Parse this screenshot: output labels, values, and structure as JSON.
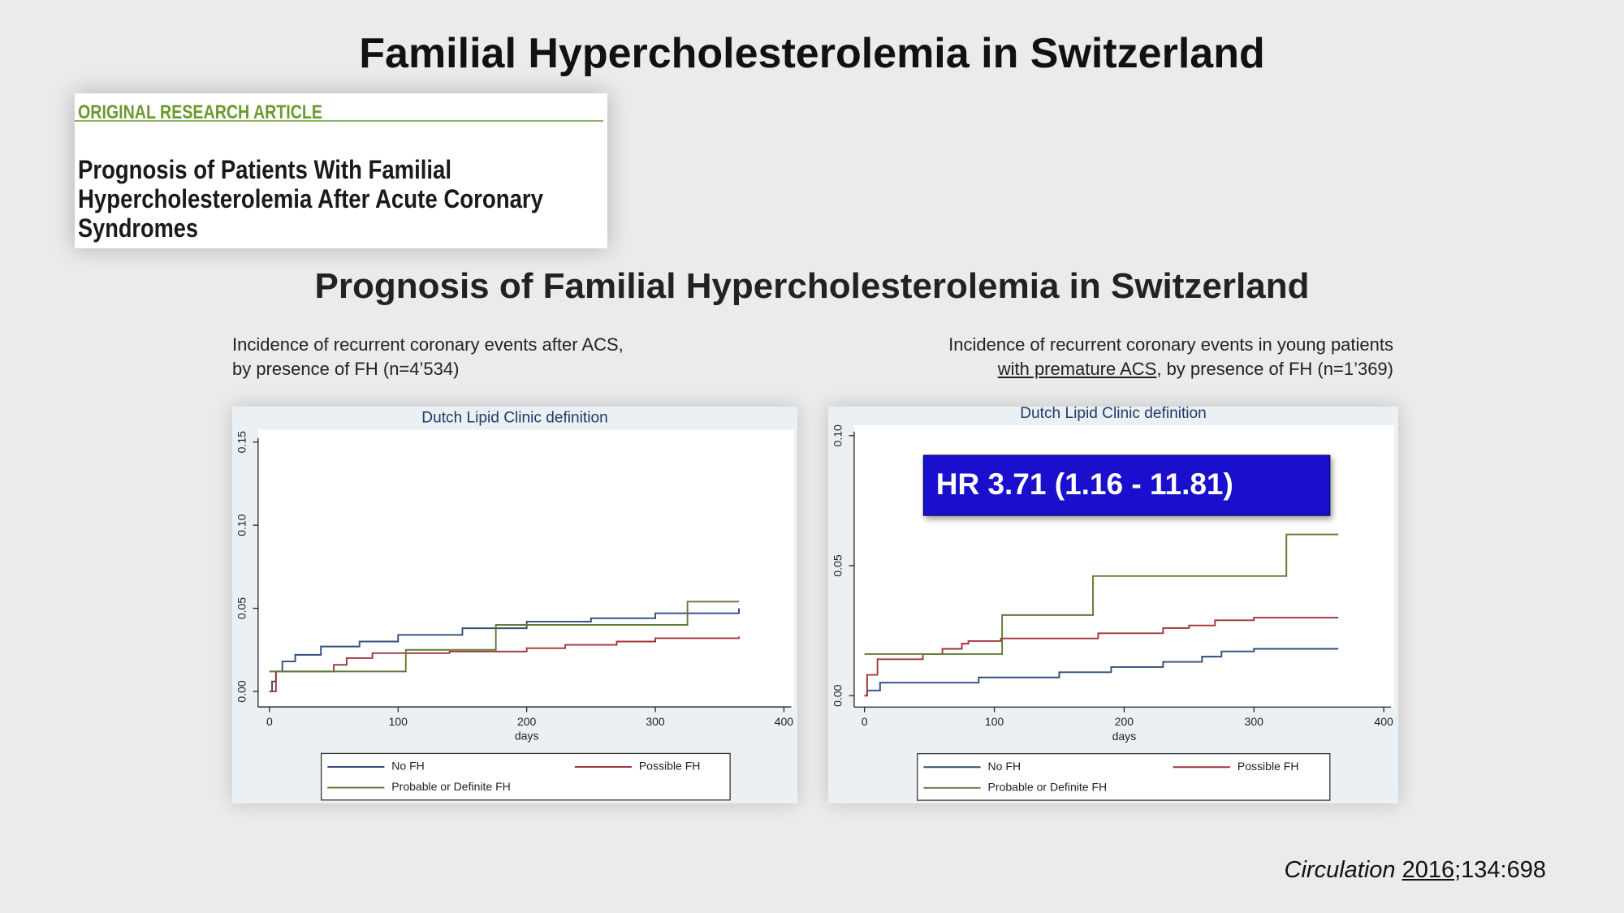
{
  "title": "Familial Hypercholesterolemia in Switzerland",
  "article": {
    "kicker": "ORIGINAL RESEARCH ARTICLE",
    "headline": [
      "Prognosis of Patients With Familial",
      "Hypercholesterolemia After Acute Coronary",
      "Syndromes"
    ]
  },
  "subtitle": "Prognosis of Familial Hypercholesterolemia in Switzerland",
  "captions": [
    [
      "Incidence of recurrent coronary events after ACS,",
      "by presence of FH (n=4’534)"
    ],
    [
      "Incidence of recurrent coronary events in young patients",
      "with premature ACS",
      ", by presence of FH (n=1’369)"
    ]
  ],
  "citation": {
    "journal": "Circulation",
    "year": "2016",
    "rest": ";134:698"
  },
  "chart_data": [
    {
      "type": "step",
      "title": "Dutch Lipid Clinic definition",
      "x_label": "days",
      "xlim": [
        0,
        400
      ],
      "xticks": [
        0,
        100,
        200,
        300,
        400
      ],
      "ylim": [
        0,
        0.15
      ],
      "yticks": [
        {
          "value": 0,
          "label": "0.00"
        },
        {
          "value": 0.05,
          "label": "0.05"
        },
        {
          "value": 0.1,
          "label": "0.10"
        },
        {
          "value": 0.15,
          "label": "0.15"
        }
      ],
      "legend": "bottom",
      "series": [
        {
          "name": "No FH",
          "color": "#2f4d7e",
          "x": [
            0,
            2,
            5,
            10,
            20,
            40,
            70,
            100,
            150,
            200,
            250,
            300,
            365
          ],
          "values": [
            0,
            0.006,
            0.012,
            0.018,
            0.022,
            0.027,
            0.03,
            0.034,
            0.038,
            0.042,
            0.044,
            0.047,
            0.05
          ]
        },
        {
          "name": "Possible FH",
          "color": "#a3333a",
          "x": [
            0,
            5,
            50,
            60,
            80,
            140,
            200,
            230,
            270,
            300,
            365
          ],
          "values": [
            0,
            0.012,
            0.016,
            0.02,
            0.023,
            0.024,
            0.026,
            0.028,
            0.03,
            0.032,
            0.033
          ]
        },
        {
          "name": "Probable or Definite FH",
          "color": "#5d7c35",
          "x": [
            0,
            106,
            176,
            325,
            365
          ],
          "values": [
            0.012,
            0.025,
            0.04,
            0.054,
            0.054
          ]
        }
      ]
    },
    {
      "type": "step",
      "title": "Dutch Lipid Clinic definition",
      "x_label": "days",
      "annotation": "HR 3.71 (1.16 - 11.81)",
      "xlim": [
        0,
        400
      ],
      "xticks": [
        0,
        100,
        200,
        300,
        400
      ],
      "ylim": [
        0,
        0.1
      ],
      "yticks": [
        {
          "value": 0,
          "label": "0.00"
        },
        {
          "value": 0.05,
          "label": "0.05"
        },
        {
          "value": 0.1,
          "label": "0.10"
        }
      ],
      "legend": "bottom",
      "series": [
        {
          "name": "No FH",
          "color": "#2f4d7e",
          "x": [
            0,
            2,
            12,
            88,
            150,
            190,
            230,
            260,
            275,
            300,
            365
          ],
          "values": [
            0,
            0.002,
            0.005,
            0.007,
            0.009,
            0.011,
            0.013,
            0.015,
            0.017,
            0.018,
            0.018
          ]
        },
        {
          "name": "Possible FH",
          "color": "#a3333a",
          "x": [
            0,
            2,
            10,
            45,
            60,
            75,
            80,
            105,
            180,
            230,
            250,
            270,
            300,
            365
          ],
          "values": [
            0,
            0.008,
            0.014,
            0.016,
            0.018,
            0.02,
            0.021,
            0.022,
            0.024,
            0.026,
            0.027,
            0.029,
            0.03,
            0.03
          ]
        },
        {
          "name": "Probable or Definite FH",
          "color": "#5d7c35",
          "x": [
            0,
            106,
            176,
            325,
            365
          ],
          "values": [
            0.016,
            0.031,
            0.046,
            0.062,
            0.062
          ]
        }
      ]
    }
  ]
}
